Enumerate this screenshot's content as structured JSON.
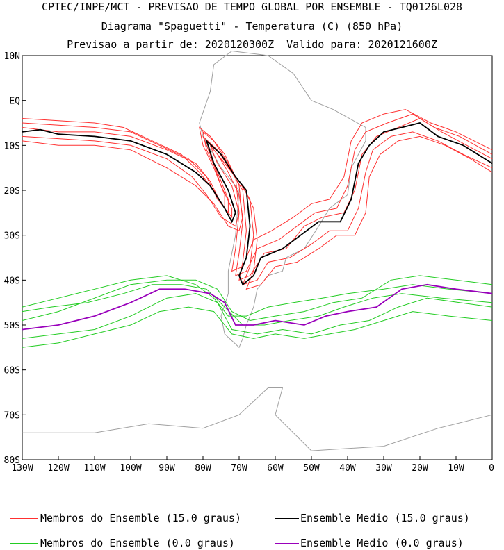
{
  "titles": {
    "line1": "CPTEC/INPE/MCT - PREVISAO DE TEMPO GLOBAL POR ENSEMBLE - TQ0126L028",
    "line2": "Diagrama \"Spaguetti\" - Temperatura (C) (850 hPa)",
    "line3": "Previsao a partir de: 2020120300Z  Valido para: 2020121600Z"
  },
  "axes": {
    "lat_labels": [
      "10N",
      "EQ",
      "10S",
      "20S",
      "30S",
      "40S",
      "50S",
      "60S",
      "70S",
      "80S"
    ],
    "lon_labels": [
      "130W",
      "120W",
      "110W",
      "100W",
      "90W",
      "80W",
      "70W",
      "60W",
      "50W",
      "40W",
      "30W",
      "20W",
      "10W",
      "0"
    ],
    "lat_values": [
      10,
      0,
      -10,
      -20,
      -30,
      -40,
      -50,
      -60,
      -70,
      -80
    ],
    "lon_values": [
      -130,
      -120,
      -110,
      -100,
      -90,
      -80,
      -70,
      -60,
      -50,
      -40,
      -30,
      -20,
      -10,
      0
    ]
  },
  "legend": {
    "members_15": "Membros do Ensemble (15.0 graus)",
    "mean_15": "Ensemble Medio (15.0 graus)",
    "members_0": "Membros do Ensemble (0.0 graus)",
    "mean_0": "Ensemble Medio (0.0 graus)"
  },
  "colors": {
    "members_15": "#ff3030",
    "mean_15": "#000000",
    "members_0": "#22cc22",
    "mean_0": "#9900bb",
    "coast": "#a0a0a0"
  },
  "contours": {
    "mean_15": [
      [
        -130,
        -7
      ],
      [
        -125,
        -6.5
      ],
      [
        -120,
        -7.5
      ],
      [
        -110,
        -8
      ],
      [
        -100,
        -9
      ],
      [
        -90,
        -12
      ],
      [
        -82,
        -16
      ],
      [
        -78,
        -19
      ],
      [
        -74,
        -24
      ],
      [
        -72,
        -27
      ],
      [
        -71,
        -25
      ],
      [
        -73,
        -20
      ],
      [
        -77,
        -14
      ],
      [
        -79,
        -9
      ],
      [
        -75,
        -12
      ],
      [
        -71,
        -17
      ],
      [
        -68,
        -20
      ],
      [
        -67,
        -28
      ],
      [
        -68,
        -35
      ],
      [
        -70,
        -39
      ],
      [
        -69,
        -41
      ],
      [
        -66,
        -39
      ],
      [
        -64,
        -35
      ],
      [
        -58,
        -33
      ],
      [
        -53,
        -30
      ],
      [
        -48,
        -27
      ],
      [
        -42,
        -27
      ],
      [
        -39,
        -22
      ],
      [
        -37,
        -14
      ],
      [
        -34,
        -10
      ],
      [
        -30,
        -7
      ],
      [
        -25,
        -6
      ],
      [
        -20,
        -5
      ],
      [
        -15,
        -8
      ],
      [
        -8,
        -10
      ],
      [
        0,
        -14
      ]
    ],
    "mean_0": [
      [
        -130,
        -51
      ],
      [
        -120,
        -50
      ],
      [
        -110,
        -48
      ],
      [
        -100,
        -45
      ],
      [
        -92,
        -42
      ],
      [
        -85,
        -42
      ],
      [
        -78,
        -43
      ],
      [
        -74,
        -45
      ],
      [
        -71,
        -50
      ],
      [
        -66,
        -50
      ],
      [
        -60,
        -49
      ],
      [
        -52,
        -50
      ],
      [
        -46,
        -48
      ],
      [
        -40,
        -47
      ],
      [
        -32,
        -46
      ],
      [
        -25,
        -42
      ],
      [
        -18,
        -41
      ],
      [
        -10,
        -42
      ],
      [
        0,
        -43
      ]
    ],
    "members_15": [
      [
        [
          -130,
          -6
        ],
        [
          -120,
          -7
        ],
        [
          -110,
          -7
        ],
        [
          -100,
          -8
        ],
        [
          -90,
          -11
        ],
        [
          -82,
          -14
        ],
        [
          -78,
          -18
        ],
        [
          -75,
          -23
        ],
        [
          -72,
          -26
        ],
        [
          -72,
          -24
        ],
        [
          -75,
          -19
        ],
        [
          -78,
          -12
        ],
        [
          -80,
          -8
        ],
        [
          -76,
          -11
        ],
        [
          -72,
          -16
        ],
        [
          -69,
          -20
        ],
        [
          -68,
          -29
        ],
        [
          -69,
          -36
        ],
        [
          -70,
          -40
        ],
        [
          -67,
          -39
        ],
        [
          -63,
          -34
        ],
        [
          -57,
          -33
        ],
        [
          -52,
          -28
        ],
        [
          -47,
          -26
        ],
        [
          -41,
          -25
        ],
        [
          -38,
          -20
        ],
        [
          -36,
          -12
        ],
        [
          -32,
          -8
        ],
        [
          -26,
          -6
        ],
        [
          -20,
          -4
        ],
        [
          -14,
          -7
        ],
        [
          -7,
          -10
        ],
        [
          0,
          -13
        ]
      ],
      [
        [
          -130,
          -8
        ],
        [
          -120,
          -8.5
        ],
        [
          -110,
          -9
        ],
        [
          -100,
          -10
        ],
        [
          -90,
          -13
        ],
        [
          -83,
          -17
        ],
        [
          -79,
          -21
        ],
        [
          -75,
          -26
        ],
        [
          -71,
          -28
        ],
        [
          -70,
          -25
        ],
        [
          -72,
          -19
        ],
        [
          -76,
          -14
        ],
        [
          -78,
          -10
        ],
        [
          -74,
          -14
        ],
        [
          -70,
          -18
        ],
        [
          -67,
          -22
        ],
        [
          -66,
          -30
        ],
        [
          -67,
          -37
        ],
        [
          -69,
          -41
        ],
        [
          -65,
          -40
        ],
        [
          -62,
          -36
        ],
        [
          -56,
          -35
        ],
        [
          -50,
          -32
        ],
        [
          -45,
          -29
        ],
        [
          -40,
          -29
        ],
        [
          -37,
          -24
        ],
        [
          -35,
          -16
        ],
        [
          -33,
          -11
        ],
        [
          -28,
          -8
        ],
        [
          -22,
          -7
        ],
        [
          -15,
          -9
        ],
        [
          -8,
          -12
        ],
        [
          0,
          -15
        ]
      ],
      [
        [
          -130,
          -5
        ],
        [
          -120,
          -5.5
        ],
        [
          -110,
          -6
        ],
        [
          -100,
          -7
        ],
        [
          -92,
          -10
        ],
        [
          -84,
          -13
        ],
        [
          -79,
          -17
        ],
        [
          -76,
          -22
        ],
        [
          -73,
          -25
        ],
        [
          -73,
          -22
        ],
        [
          -76,
          -16
        ],
        [
          -79,
          -11
        ],
        [
          -80,
          -7
        ],
        [
          -77,
          -9
        ],
        [
          -73,
          -14
        ],
        [
          -70,
          -19
        ],
        [
          -69,
          -27
        ],
        [
          -70,
          -34
        ],
        [
          -71,
          -39
        ],
        [
          -68,
          -38
        ],
        [
          -65,
          -33
        ],
        [
          -59,
          -31
        ],
        [
          -54,
          -28
        ],
        [
          -49,
          -25
        ],
        [
          -43,
          -24
        ],
        [
          -40,
          -19
        ],
        [
          -38,
          -11
        ],
        [
          -35,
          -7
        ],
        [
          -29,
          -5
        ],
        [
          -22,
          -3
        ],
        [
          -16,
          -6
        ],
        [
          -9,
          -8
        ],
        [
          0,
          -12
        ]
      ],
      [
        [
          -130,
          -9
        ],
        [
          -120,
          -10
        ],
        [
          -110,
          -10
        ],
        [
          -100,
          -11
        ],
        [
          -90,
          -15
        ],
        [
          -82,
          -19
        ],
        [
          -77,
          -23
        ],
        [
          -73,
          -28
        ],
        [
          -70,
          -29
        ],
        [
          -69,
          -26
        ],
        [
          -70,
          -21
        ],
        [
          -73,
          -16
        ],
        [
          -76,
          -12
        ],
        [
          -73,
          -15
        ],
        [
          -69,
          -19
        ],
        [
          -66,
          -24
        ],
        [
          -65,
          -31
        ],
        [
          -66,
          -38
        ],
        [
          -68,
          -42
        ],
        [
          -64,
          -41
        ],
        [
          -60,
          -37
        ],
        [
          -54,
          -36
        ],
        [
          -48,
          -33
        ],
        [
          -43,
          -30
        ],
        [
          -38,
          -30
        ],
        [
          -35,
          -25
        ],
        [
          -34,
          -17
        ],
        [
          -31,
          -12
        ],
        [
          -26,
          -9
        ],
        [
          -20,
          -8
        ],
        [
          -13,
          -10
        ],
        [
          -6,
          -13
        ],
        [
          0,
          -16
        ]
      ],
      [
        [
          -130,
          -4
        ],
        [
          -120,
          -4.5
        ],
        [
          -110,
          -5
        ],
        [
          -102,
          -6
        ],
        [
          -94,
          -9
        ],
        [
          -86,
          -12
        ],
        [
          -81,
          -16
        ],
        [
          -77,
          -20
        ],
        [
          -74,
          -24
        ],
        [
          -74,
          -21
        ],
        [
          -77,
          -15
        ],
        [
          -80,
          -10
        ],
        [
          -81,
          -6
        ],
        [
          -78,
          -8
        ],
        [
          -74,
          -12
        ],
        [
          -71,
          -17
        ],
        [
          -70,
          -25
        ],
        [
          -71,
          -33
        ],
        [
          -72,
          -38
        ],
        [
          -69,
          -37
        ],
        [
          -66,
          -31
        ],
        [
          -61,
          -29
        ],
        [
          -55,
          -26
        ],
        [
          -50,
          -23
        ],
        [
          -45,
          -22
        ],
        [
          -41,
          -17
        ],
        [
          -39,
          -9
        ],
        [
          -36,
          -5
        ],
        [
          -30,
          -3
        ],
        [
          -24,
          -2
        ],
        [
          -17,
          -5
        ],
        [
          -10,
          -7
        ],
        [
          0,
          -11
        ]
      ]
    ],
    "members_0": [
      [
        [
          -130,
          -49
        ],
        [
          -120,
          -47
        ],
        [
          -110,
          -44
        ],
        [
          -100,
          -41
        ],
        [
          -90,
          -40
        ],
        [
          -82,
          -40
        ],
        [
          -76,
          -42
        ],
        [
          -72,
          -47
        ],
        [
          -67,
          -49
        ],
        [
          -60,
          -48
        ],
        [
          -52,
          -47
        ],
        [
          -44,
          -45
        ],
        [
          -36,
          -44
        ],
        [
          -28,
          -40
        ],
        [
          -20,
          -39
        ],
        [
          -10,
          -40
        ],
        [
          0,
          -41
        ]
      ],
      [
        [
          -130,
          -53
        ],
        [
          -120,
          -52
        ],
        [
          -110,
          -51
        ],
        [
          -100,
          -48
        ],
        [
          -90,
          -44
        ],
        [
          -82,
          -43
        ],
        [
          -76,
          -45
        ],
        [
          -72,
          -51
        ],
        [
          -65,
          -52
        ],
        [
          -58,
          -51
        ],
        [
          -50,
          -52
        ],
        [
          -42,
          -50
        ],
        [
          -34,
          -49
        ],
        [
          -26,
          -46
        ],
        [
          -18,
          -44
        ],
        [
          -9,
          -45
        ],
        [
          0,
          -46
        ]
      ],
      [
        [
          -130,
          -46
        ],
        [
          -120,
          -44
        ],
        [
          -110,
          -42
        ],
        [
          -100,
          -40
        ],
        [
          -90,
          -39
        ],
        [
          -82,
          -41
        ],
        [
          -77,
          -44
        ],
        [
          -73,
          -48
        ],
        [
          -68,
          -48
        ],
        [
          -62,
          -46
        ],
        [
          -55,
          -45
        ],
        [
          -47,
          -44
        ],
        [
          -40,
          -43
        ],
        [
          -30,
          -42
        ],
        [
          -22,
          -41
        ],
        [
          -12,
          -42
        ],
        [
          0,
          -43
        ]
      ],
      [
        [
          -130,
          -55
        ],
        [
          -120,
          -54
        ],
        [
          -110,
          -52
        ],
        [
          -100,
          -50
        ],
        [
          -92,
          -47
        ],
        [
          -84,
          -46
        ],
        [
          -77,
          -47
        ],
        [
          -72,
          -52
        ],
        [
          -66,
          -53
        ],
        [
          -60,
          -52
        ],
        [
          -52,
          -53
        ],
        [
          -45,
          -52
        ],
        [
          -38,
          -51
        ],
        [
          -30,
          -49
        ],
        [
          -22,
          -47
        ],
        [
          -12,
          -48
        ],
        [
          0,
          -49
        ]
      ],
      [
        [
          -130,
          -47
        ],
        [
          -122,
          -46
        ],
        [
          -112,
          -45
        ],
        [
          -102,
          -43
        ],
        [
          -94,
          -41
        ],
        [
          -86,
          -41
        ],
        [
          -79,
          -42
        ],
        [
          -74,
          -46
        ],
        [
          -69,
          -50
        ],
        [
          -63,
          -50
        ],
        [
          -56,
          -49
        ],
        [
          -48,
          -48
        ],
        [
          -41,
          -46
        ],
        [
          -33,
          -44
        ],
        [
          -25,
          -43
        ],
        [
          -14,
          -44
        ],
        [
          0,
          -45
        ]
      ]
    ]
  }
}
